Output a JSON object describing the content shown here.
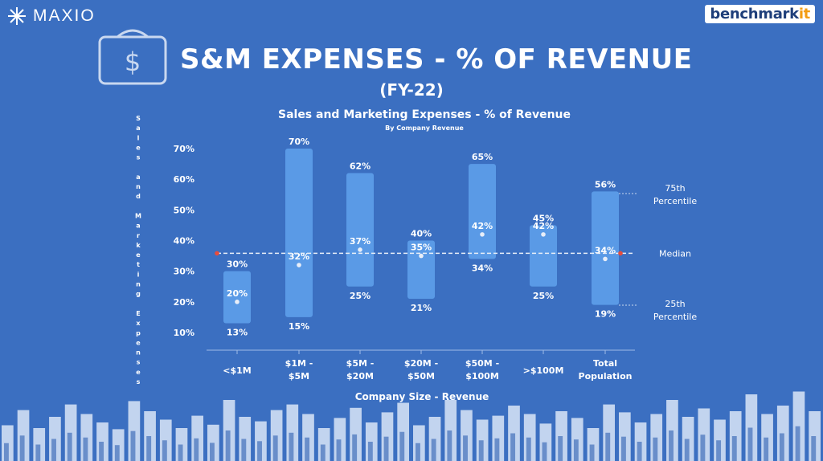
{
  "header": {
    "logo_left": "MAXIO",
    "logo_right_main": "benchmark",
    "logo_right_accent": "it",
    "title": "S&M EXPENSES - % OF REVENUE",
    "subtitle": "(FY-22)"
  },
  "colors": {
    "background": "#3b6fc1",
    "bar": "#5a9ae6",
    "median_line": "#e8eef8",
    "median_dot": "#e74c3c",
    "accent": "#f39c12"
  },
  "icons": [
    "money-bag-icon",
    "snowflake-logo-icon"
  ],
  "chart_data": {
    "type": "bar",
    "title": "Sales and Marketing Expenses - % of Revenue",
    "subtitle": "By Company Revenue",
    "xlabel": "Company Size - Revenue",
    "ylabel": "Sales and Marketing Expenses",
    "ylim": [
      10,
      70
    ],
    "yticks": [
      "70%",
      "60%",
      "50%",
      "40%",
      "30%",
      "20%",
      "10%"
    ],
    "ytick_values": [
      70,
      60,
      50,
      40,
      30,
      20,
      10
    ],
    "overall_median": 34,
    "categories": [
      {
        "label": [
          "<$1M"
        ],
        "p25": 13,
        "median": 20,
        "p75": 30
      },
      {
        "label": [
          "$1M -",
          "$5M"
        ],
        "p25": 15,
        "median": 32,
        "p75": 70
      },
      {
        "label": [
          "$5M -",
          "$20M"
        ],
        "p25": 25,
        "median": 37,
        "p75": 62
      },
      {
        "label": [
          "$20M -",
          "$50M"
        ],
        "p25": 21,
        "median": 35,
        "p75": 40
      },
      {
        "label": [
          "$50M -",
          "$100M"
        ],
        "p25": 34,
        "median": 42,
        "p75": 65
      },
      {
        "label": [
          ">$100M"
        ],
        "p25": 25,
        "median": 42,
        "p75": 45
      },
      {
        "label": [
          "Total",
          "Population"
        ],
        "p25": 19,
        "median": 34,
        "p75": 56
      }
    ],
    "legend": {
      "p75": [
        "75th",
        "Percentile"
      ],
      "median": [
        "Median"
      ],
      "p25": [
        "25th",
        "Percentile"
      ]
    }
  },
  "decoration_bars": [
    0.35,
    0.62,
    0.3,
    0.5,
    0.72,
    0.55,
    0.4,
    0.28,
    0.78,
    0.6,
    0.45,
    0.3,
    0.52,
    0.36,
    0.8,
    0.5,
    0.42,
    0.62,
    0.72,
    0.55,
    0.3,
    0.48,
    0.66,
    0.4,
    0.58,
    0.75,
    0.35,
    0.5,
    0.8,
    0.62,
    0.45,
    0.52,
    0.7,
    0.55,
    0.38,
    0.6,
    0.48,
    0.3,
    0.72,
    0.58,
    0.4,
    0.55,
    0.8,
    0.5,
    0.65,
    0.45,
    0.6,
    0.9,
    0.55,
    0.7,
    0.95,
    0.6
  ]
}
